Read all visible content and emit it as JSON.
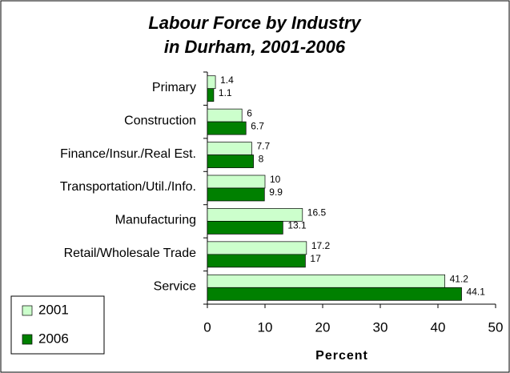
{
  "chart_data": {
    "type": "hbar",
    "title": [
      "Labour Force by Industry",
      "in Durham, 2001-2006"
    ],
    "categories": [
      "Primary",
      "Construction",
      "Finance/Insur./Real Est.",
      "Transportation/Util./Info.",
      "Manufacturing",
      "Retail/Wholesale Trade",
      "Service"
    ],
    "series": [
      {
        "name": "2001",
        "color": "#ccffcc",
        "values": [
          1.4,
          6,
          7.7,
          10,
          16.5,
          17.2,
          41.2
        ]
      },
      {
        "name": "2006",
        "color": "#008000",
        "values": [
          1.1,
          6.7,
          8,
          9.9,
          13.1,
          17,
          44.1
        ]
      }
    ],
    "xlabel": "Percent",
    "xlim": [
      0,
      50
    ],
    "xticks": [
      0,
      10,
      20,
      30,
      40,
      50
    ],
    "grid": false,
    "legend": "bottom-left"
  }
}
